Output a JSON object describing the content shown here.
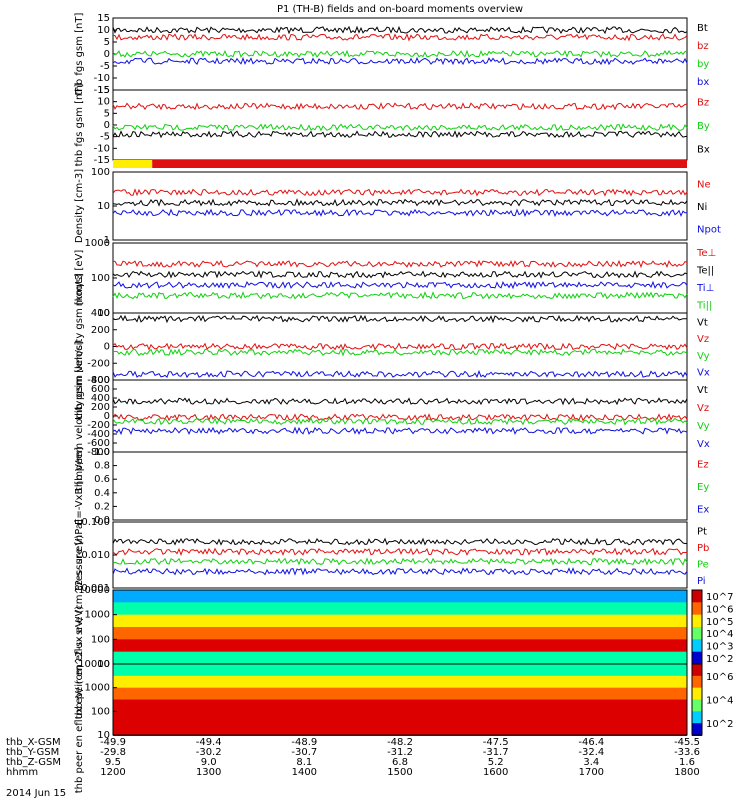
{
  "title": "P1 (TH-B) fields and on-board moments overview",
  "date_label": "2014 Jun 15",
  "colors": {
    "black": "#000000",
    "red": "#e01010",
    "green": "#10d010",
    "blue": "#1010e0",
    "yellow": "#ffee00"
  },
  "chart_data": [
    {
      "type": "line",
      "ylabel": "thb fgs gsm [nT]",
      "yticks": [
        "15",
        "10",
        "5",
        "0",
        "-5",
        "-10",
        "-15"
      ],
      "ylim": [
        -15,
        15
      ],
      "series": [
        {
          "name": "Bt",
          "color": "black",
          "level": 10
        },
        {
          "name": "bz",
          "color": "red",
          "level": 7
        },
        {
          "name": "by",
          "color": "green",
          "level": 0
        },
        {
          "name": "bx",
          "color": "blue",
          "level": -3
        }
      ]
    },
    {
      "type": "line",
      "ylabel": "thb fgs gsm [nT]",
      "yticks": [
        "15",
        "10",
        "5",
        "0",
        "-5",
        "-10",
        "-15"
      ],
      "ylim": [
        -15,
        15
      ],
      "series": [
        {
          "name": "Bz",
          "color": "red",
          "level": 8
        },
        {
          "name": "By",
          "color": "green",
          "level": -1
        },
        {
          "name": "Bx",
          "color": "black",
          "level": -4
        }
      ]
    },
    {
      "type": "bar",
      "description_bar": "mode bar",
      "segments": [
        {
          "color": "yellow",
          "x_from": 1200,
          "x_to": 1241
        },
        {
          "color": "red",
          "x_from": 1241,
          "x_to": 1800
        }
      ]
    },
    {
      "type": "line",
      "ylabel": "Density [cm-3]",
      "yscale": "log",
      "yticks": [
        "100",
        "10",
        "1"
      ],
      "series": [
        {
          "name": "Ne",
          "color": "red",
          "level": 4
        },
        {
          "name": "Ni",
          "color": "black",
          "level": 5
        },
        {
          "name": "Npot",
          "color": "blue",
          "level": 3
        }
      ]
    },
    {
      "type": "line",
      "ylabel": "moqt3 [eV]",
      "yscale": "log",
      "yticks": [
        "1000",
        "100",
        "10"
      ],
      "series": [
        {
          "name": "Te⊥",
          "color": "red",
          "level": 20
        },
        {
          "name": "Te||",
          "color": "black",
          "level": 100
        },
        {
          "name": "Ti⊥",
          "color": "blue",
          "level": 120
        },
        {
          "name": "Ti||",
          "color": "green",
          "level": 70
        }
      ]
    },
    {
      "type": "line",
      "ylabel": "thb peim velocity gsm [km/s]",
      "yticks": [
        "400",
        "200",
        "0",
        "-200",
        "-400"
      ],
      "ylim": [
        -400,
        400
      ],
      "series": [
        {
          "name": "Vt",
          "color": "black",
          "level": 330
        },
        {
          "name": "Vz",
          "color": "red",
          "level": 0
        },
        {
          "name": "Vy",
          "color": "green",
          "level": -70
        },
        {
          "name": "Vx",
          "color": "blue",
          "level": -330
        }
      ]
    },
    {
      "type": "line",
      "ylabel": "thb peem velocity gsm [km/s]",
      "yticks": [
        "800",
        "600",
        "400",
        "200",
        "0",
        "-200",
        "-400",
        "-600",
        "-800"
      ],
      "ylim": [
        -800,
        800
      ],
      "series": [
        {
          "name": "Vt",
          "color": "black",
          "level": 330
        },
        {
          "name": "Vz",
          "color": "red",
          "level": -30
        },
        {
          "name": "Vy",
          "color": "green",
          "level": -120
        },
        {
          "name": "Vx",
          "color": "blue",
          "level": -330
        }
      ]
    },
    {
      "type": "line",
      "ylabel": "E=-VxB [mV/m]",
      "yticks": [
        "1.0",
        "0.8",
        "0.6",
        "0.4",
        "0.2",
        "0.0"
      ],
      "ylim": [
        0,
        1
      ],
      "series": [
        {
          "name": "Ez",
          "color": "red"
        },
        {
          "name": "Ey",
          "color": "green"
        },
        {
          "name": "Ex",
          "color": "blue"
        }
      ]
    },
    {
      "type": "line",
      "ylabel": "Pressure [nPa]",
      "yscale": "log",
      "yticks": [
        "0.100",
        "0.010",
        "0.001"
      ],
      "series": [
        {
          "name": "Pt",
          "color": "black",
          "level": 0.13
        },
        {
          "name": "Pb",
          "color": "red",
          "level": 0.02
        },
        {
          "name": "Pe",
          "color": "green",
          "level": 0.03
        },
        {
          "name": "Pi",
          "color": "blue",
          "level": 0.08
        }
      ]
    },
    {
      "type": "heatmap",
      "ylabel": "thb peir en eflux eV/ (cm^2-s- sr-eV)",
      "yticks": [
        "10000",
        "1000",
        "100",
        "10"
      ],
      "colorbar_ticks": [
        "10^7",
        "10^6",
        "10^5",
        "10^4",
        "10^3",
        "10^2"
      ]
    },
    {
      "type": "heatmap",
      "ylabel": "thb peer en eflux eV/ (cm^2-s- sr-eV)",
      "yticks": [
        "10000",
        "1000",
        "100",
        "10"
      ],
      "colorbar_ticks": [
        "10^6",
        "10^4",
        "10^2"
      ]
    }
  ],
  "x_axis": {
    "rows": [
      {
        "label": "thb_X-GSM",
        "values": [
          "-49.9",
          "-49.4",
          "-48.9",
          "-48.2",
          "-47.5",
          "-46.4",
          "-45.5"
        ]
      },
      {
        "label": "thb_Y-GSM",
        "values": [
          "-29.8",
          "-30.2",
          "-30.7",
          "-31.2",
          "-31.7",
          "-32.4",
          "-33.6"
        ]
      },
      {
        "label": "thb_Z-GSM",
        "values": [
          "9.5",
          "9.0",
          "8.1",
          "6.8",
          "5.2",
          "3.4",
          "1.6"
        ]
      },
      {
        "label": "hhmm",
        "values": [
          "1200",
          "1300",
          "1400",
          "1500",
          "1600",
          "1700",
          "1800"
        ]
      }
    ]
  }
}
